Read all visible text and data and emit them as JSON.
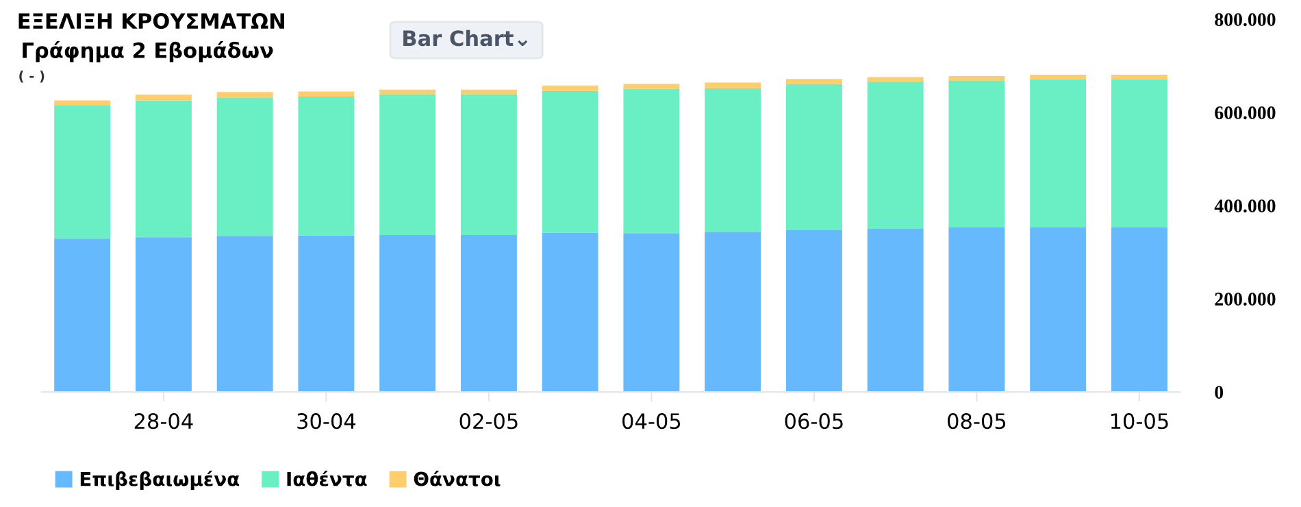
{
  "chart_data": {
    "type": "bar",
    "title": "ΕΞΕΛΙΞΗ ΚΡΟΥΣΜΑΤΩΝ",
    "subtitle": "Γράφημα 2 Εβομάδων",
    "annotations": [
      "( - )",
      "Bar Chart⌄"
    ],
    "categories": [
      null,
      "28-04",
      null,
      "30-04",
      null,
      "02-05",
      null,
      "04-05",
      null,
      "06-05",
      null,
      "08-05",
      null,
      "10-05"
    ],
    "stacked": true,
    "series": [
      {
        "name": "Επιβεβαιωμένα",
        "color": "#66b9fc",
        "values": [
          329000,
          332000,
          335000,
          336000,
          337000,
          337000,
          342000,
          341000,
          344000,
          347000,
          350000,
          353000,
          353000,
          353000
        ]
      },
      {
        "name": "Ιαθέντα",
        "color": "#69efc3",
        "values": [
          286000,
          294000,
          297000,
          298000,
          302000,
          302000,
          304000,
          310000,
          308000,
          314000,
          316000,
          316000,
          318000,
          318000
        ]
      },
      {
        "name": "Θάνατοι",
        "color": "#ffcd6b",
        "values": [
          11000,
          12000,
          12000,
          11000,
          10000,
          10000,
          12000,
          10000,
          12000,
          11000,
          10000,
          9000,
          10000,
          10000
        ]
      }
    ],
    "ylim": [
      0,
      800000
    ],
    "yticks": [
      {
        "value": 0,
        "label": "0"
      },
      {
        "value": 200000,
        "label": "200.000"
      },
      {
        "value": 400000,
        "label": "400.000"
      },
      {
        "value": 600000,
        "label": "600.000"
      },
      {
        "value": 800000,
        "label": "800.000"
      }
    ],
    "grid": false,
    "legend": "bottom left"
  }
}
